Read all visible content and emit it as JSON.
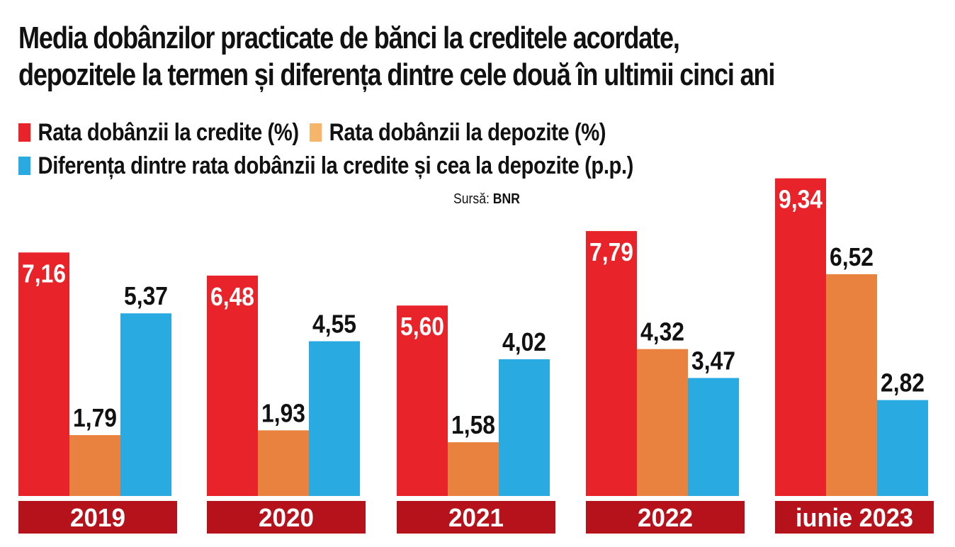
{
  "chart_data": {
    "type": "bar",
    "title": [
      "Media dobânzilor practicate de bănci la creditele acordate,",
      "depozitele la termen și diferența dintre cele două în ultimii cinci ani"
    ],
    "source_label": "Sursă:",
    "source_value": "BNR",
    "categories": [
      "2019",
      "2020",
      "2021",
      "2022",
      "iunie 2023"
    ],
    "series": [
      {
        "name": "Rata dobânzii la credite (%)",
        "color": "#e8242a",
        "values": [
          7.16,
          6.48,
          5.6,
          7.79,
          9.34
        ],
        "labels": [
          "7,16",
          "6,48",
          "5,60",
          "7,79",
          "9,34"
        ]
      },
      {
        "name": "Rata dobânzii la depozite (%)",
        "color": "#e8823e",
        "values": [
          1.79,
          1.93,
          1.58,
          4.32,
          6.52
        ],
        "labels": [
          "1,79",
          "1,93",
          "1,58",
          "4,32",
          "6,52"
        ]
      },
      {
        "name": "Diferența dintre rata dobânzii la credite și cea la depozite (p.p.)",
        "color": "#29abe2",
        "values": [
          5.37,
          4.55,
          4.02,
          3.47,
          2.82
        ],
        "labels": [
          "5,37",
          "4,55",
          "4,02",
          "3,47",
          "2,82"
        ]
      }
    ],
    "legend_swatch_colors": [
      "#e8242a",
      "#f5b66b",
      "#29abe2"
    ],
    "year_band_color": "#b5121b",
    "grid": false,
    "legend_placement": "top-left",
    "ylim": [
      0,
      9.5
    ]
  }
}
